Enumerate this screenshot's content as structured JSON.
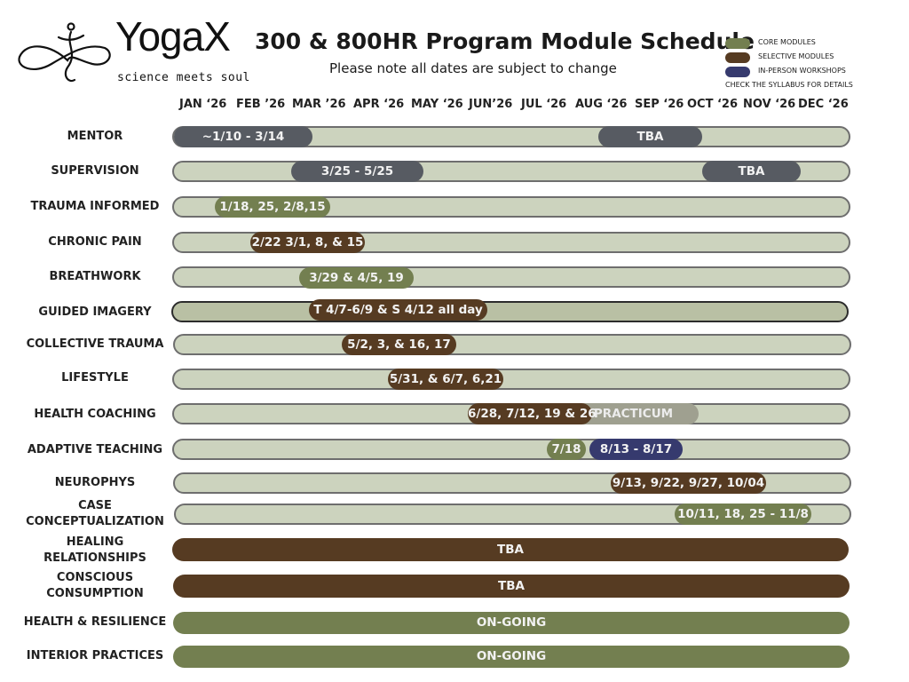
{
  "logo": {
    "brand": "YogaX",
    "tagline": "science meets soul"
  },
  "header": {
    "title": "300 & 800HR Program Module Schedule",
    "subtitle": "Please note all dates are subject to change"
  },
  "colors": {
    "core": "#737f50",
    "selective": "#563b22",
    "workshop": "#363a6e",
    "gray": "#575b62",
    "light_gray": "#9fa090",
    "track": "#ccd3be"
  },
  "legend": {
    "items": [
      {
        "label": "CORE MODULES",
        "color": "#737f50"
      },
      {
        "label": "SELECTIVE MODULES",
        "color": "#563b22"
      },
      {
        "label": "IN-PERSON WORKSHOPS",
        "color": "#363a6e"
      }
    ],
    "note": "CHECK THE SYLLABUS FOR DETAILS"
  },
  "months": [
    "JAN ‘26",
    "FEB ’26",
    "MAR ’26",
    "APR ‘26",
    "MAY ‘26",
    "JUN’26",
    "JUL ‘26",
    "AUG ‘26",
    "SEP ‘26",
    "OCT ‘26",
    "NOV ‘26",
    "DEC ‘26"
  ],
  "rows": [
    {
      "label": "MENTOR",
      "segments": [
        {
          "text": "~1/10 - 3/14",
          "color": "gray"
        },
        {
          "text": "TBA",
          "color": "gray"
        }
      ]
    },
    {
      "label": "SUPERVISION",
      "segments": [
        {
          "text": "3/25 - 5/25",
          "color": "gray"
        },
        {
          "text": "TBA",
          "color": "gray"
        }
      ]
    },
    {
      "label": "TRAUMA INFORMED",
      "segments": [
        {
          "text": "1/18, 25, 2/8,15",
          "color": "core"
        }
      ]
    },
    {
      "label": "CHRONIC PAIN",
      "segments": [
        {
          "text": "2/22 3/1, 8, & 15",
          "color": "selective"
        }
      ]
    },
    {
      "label": "BREATHWORK",
      "segments": [
        {
          "text": "3/29 & 4/5, 19",
          "color": "core"
        }
      ]
    },
    {
      "label": "GUIDED IMAGERY",
      "segments": [
        {
          "text": "T 4/7-6/9 & S 4/12 all day",
          "color": "selective"
        }
      ]
    },
    {
      "label": "COLLECTIVE TRAUMA",
      "segments": [
        {
          "text": "5/2, 3, & 16, 17",
          "color": "selective"
        }
      ]
    },
    {
      "label": "LIFESTYLE",
      "segments": [
        {
          "text": "5/31, & 6/7, 6,21",
          "color": "selective"
        }
      ]
    },
    {
      "label": "HEALTH COACHING",
      "segments": [
        {
          "text": "PRACTICUM",
          "color": "light_gray"
        },
        {
          "text": "6/28, 7/12, 19 & 26",
          "color": "selective"
        }
      ]
    },
    {
      "label": "ADAPTIVE TEACHING",
      "segments": [
        {
          "text": "7/18",
          "color": "core"
        },
        {
          "text": "8/13 - 8/17",
          "color": "workshop"
        }
      ]
    },
    {
      "label": "NEUROPHYS",
      "segments": [
        {
          "text": "9/13, 9/22, 9/27, 10/04",
          "color": "selective"
        }
      ]
    },
    {
      "label": "CASE CONCEPTUALIZATION",
      "label_lines": [
        "CASE",
        "CONCEPTUALIZATION"
      ],
      "segments": [
        {
          "text": "10/11, 18, 25 - 11/8",
          "color": "core"
        }
      ]
    },
    {
      "label": "HEALING RELATIONSHIPS",
      "label_lines": [
        "HEALING",
        "RELATIONSHIPS"
      ],
      "segments": [
        {
          "text": "TBA",
          "color": "selective"
        }
      ]
    },
    {
      "label": "CONSCIOUS CONSUMPTION",
      "label_lines": [
        "CONSCIOUS",
        "CONSUMPTION"
      ],
      "segments": [
        {
          "text": "TBA",
          "color": "selective"
        }
      ]
    },
    {
      "label": "HEALTH & RESILIENCE",
      "segments": [
        {
          "text": "ON-GOING",
          "color": "core"
        }
      ]
    },
    {
      "label": "INTERIOR PRACTICES",
      "segments": [
        {
          "text": "ON-GOING",
          "color": "core"
        }
      ]
    }
  ]
}
